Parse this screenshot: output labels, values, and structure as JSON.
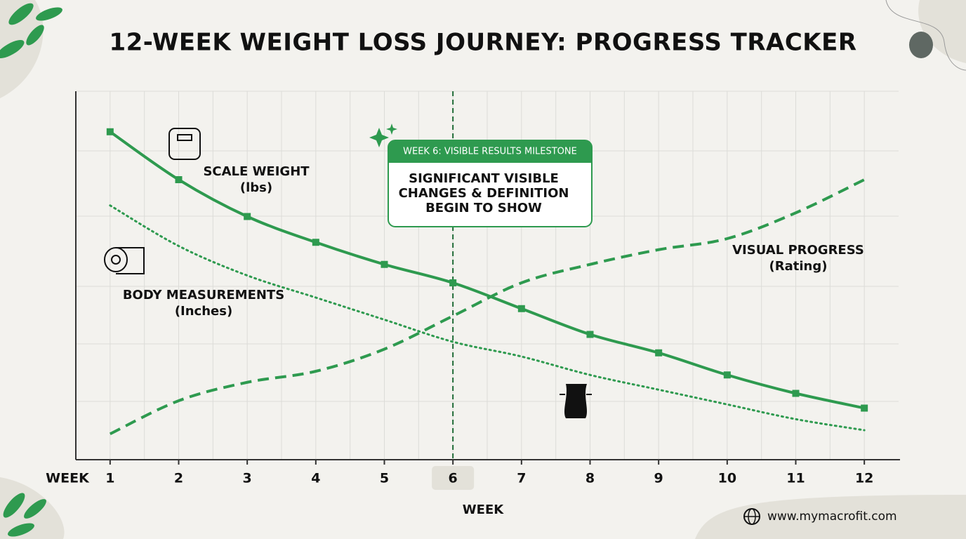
{
  "title": "12-WEEK WEIGHT LOSS JOURNEY: PROGRESS TRACKER",
  "chart_data": {
    "type": "line",
    "x": [
      1,
      2,
      3,
      4,
      5,
      6,
      7,
      8,
      9,
      10,
      11,
      12
    ],
    "xlim": [
      0.5,
      12.5
    ],
    "xticks": [
      1,
      2,
      3,
      4,
      5,
      6,
      7,
      8,
      9,
      10,
      11,
      12
    ],
    "ylim": [
      0,
      100
    ],
    "x_axis_prefix": "WEEK",
    "xlabel": "WEEK",
    "grid": true,
    "milestone_week": 6,
    "series": [
      {
        "name": "SCALE WEIGHT",
        "unit": "(lbs)",
        "color": "#2e9a4f",
        "style": "solid",
        "markers": true,
        "values": [
          89,
          76,
          66,
          59,
          53,
          48,
          41,
          34,
          29,
          23,
          18,
          14
        ]
      },
      {
        "name": "BODY MEASUREMENTS",
        "unit": "(Inches)",
        "color": "#2e9a4f",
        "style": "dotted",
        "markers": false,
        "values": [
          69,
          58,
          50,
          44,
          38,
          32,
          28,
          23,
          19,
          15,
          11,
          8
        ]
      },
      {
        "name": "VISUAL PROGRESS",
        "unit": "(Rating)",
        "color": "#2e9a4f",
        "style": "dashed",
        "markers": false,
        "values": [
          7,
          16,
          21,
          24,
          30,
          39,
          48,
          53,
          57,
          60,
          67,
          76
        ]
      }
    ],
    "annotation": {
      "header": "WEEK 6: VISIBLE RESULTS MILESTONE",
      "lines": [
        "SIGNIFICANT VISIBLE",
        "CHANGES & DEFINITION",
        "BEGIN TO SHOW"
      ]
    }
  },
  "footer": {
    "url": "www.mymacrofit.com"
  }
}
